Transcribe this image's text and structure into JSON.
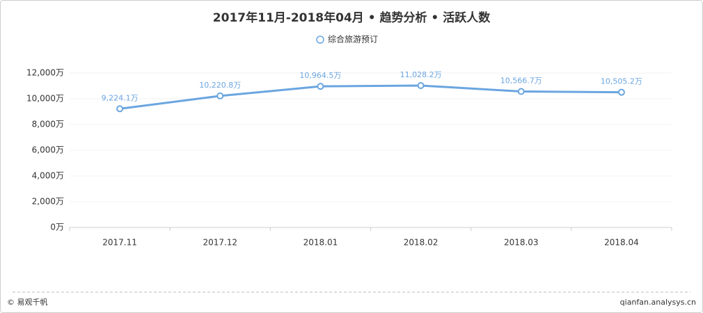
{
  "chart_data": {
    "type": "line",
    "title": "2017年11月-2018年04月 • 趋势分析 • 活跃人数",
    "categories": [
      "2017.11",
      "2017.12",
      "2018.01",
      "2018.02",
      "2018.03",
      "2018.04"
    ],
    "series": [
      {
        "name": "综合旅游预订",
        "color": "#6aa5e0",
        "values": [
          9224.1,
          10220.8,
          10964.5,
          11028.2,
          10566.7,
          10505.2
        ],
        "value_labels": [
          "9,224.1万",
          "10,220.8万",
          "10,964.5万",
          "11,028.2万",
          "10,566.7万",
          "10,505.2万"
        ]
      }
    ],
    "ylim": [
      0,
      12000
    ],
    "yticks": [
      {
        "value": 0,
        "label": "0万"
      },
      {
        "value": 2000,
        "label": "2,000万"
      },
      {
        "value": 4000,
        "label": "4,000万"
      },
      {
        "value": 6000,
        "label": "6,000万"
      },
      {
        "value": 8000,
        "label": "8,000万"
      },
      {
        "value": 10000,
        "label": "10,000万"
      },
      {
        "value": 12000,
        "label": "12,000万"
      }
    ],
    "grid": true
  },
  "footer": {
    "left": "© 易观千帆",
    "right": "qianfan.analysys.cn"
  }
}
